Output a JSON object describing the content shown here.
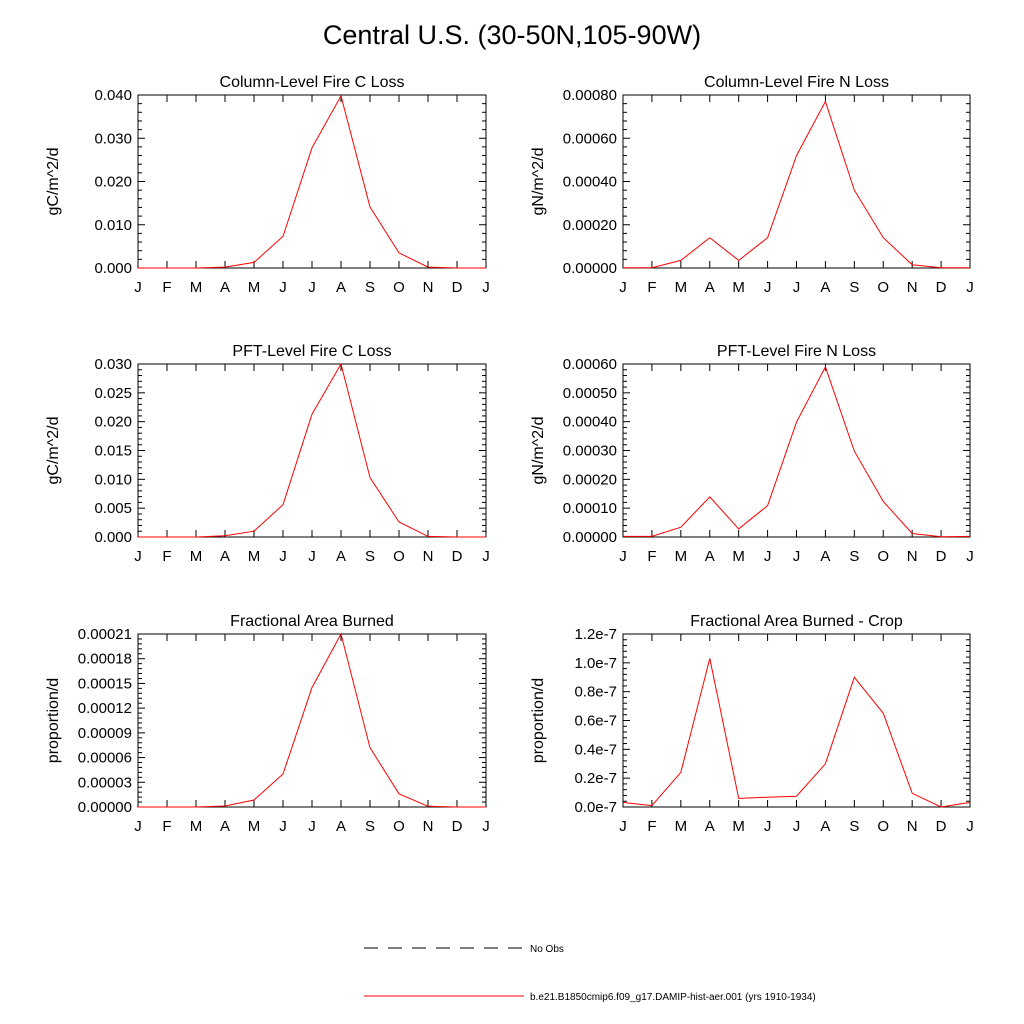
{
  "figure": {
    "title": "Central U.S. (30-50N,105-90W)"
  },
  "colors": {
    "model_line": "#ff0000",
    "obs_line": "#000000",
    "axis": "#000000"
  },
  "legend": {
    "placement": "bottom-center",
    "entries": [
      {
        "label": "No Obs",
        "style": "dashed",
        "color": "#000000"
      },
      {
        "label": "b.e21.B1850cmip6.f09_g17.DAMIP-hist-aer.001 (yrs 1910-1934)",
        "style": "solid",
        "color": "#ff0000"
      }
    ]
  },
  "chart_data": [
    {
      "type": "line",
      "title": "Column-Level Fire C Loss",
      "xlabel": "",
      "ylabel": "gC/m^2/d",
      "categories": [
        "J",
        "F",
        "M",
        "A",
        "M",
        "J",
        "J",
        "A",
        "S",
        "O",
        "N",
        "D",
        "J"
      ],
      "ylim": [
        0,
        0.04
      ],
      "yticks": [
        "0.000",
        "0.010",
        "0.020",
        "0.030",
        "0.040"
      ],
      "series": [
        {
          "values": [
            0.0,
            0.0,
            0.0,
            0.0002,
            0.0013,
            0.0073,
            0.0278,
            0.0398,
            0.0141,
            0.0035,
            0.0002,
            0.0,
            0.0
          ]
        }
      ]
    },
    {
      "type": "line",
      "title": "Column-Level Fire N Loss",
      "xlabel": "",
      "ylabel": "gN/m^2/d",
      "categories": [
        "J",
        "F",
        "M",
        "A",
        "M",
        "J",
        "J",
        "A",
        "S",
        "O",
        "N",
        "D",
        "J"
      ],
      "ylim": [
        0,
        0.0008
      ],
      "yticks": [
        "0.00000",
        "0.00020",
        "0.00040",
        "0.00060",
        "0.00080"
      ],
      "series": [
        {
          "values": [
            1.5e-06,
            1.5e-06,
            3.5e-05,
            0.00014,
            3.5e-05,
            0.00014,
            0.00052,
            0.00077,
            0.00036,
            0.00014,
            1.5e-05,
            1.5e-06,
            1.5e-06
          ]
        }
      ]
    },
    {
      "type": "line",
      "title": "PFT-Level Fire C Loss",
      "xlabel": "",
      "ylabel": "gC/m^2/d",
      "categories": [
        "J",
        "F",
        "M",
        "A",
        "M",
        "J",
        "J",
        "A",
        "S",
        "O",
        "N",
        "D",
        "J"
      ],
      "ylim": [
        0,
        0.03
      ],
      "yticks": [
        "0.000",
        "0.005",
        "0.010",
        "0.015",
        "0.020",
        "0.025",
        "0.030"
      ],
      "series": [
        {
          "values": [
            0.0,
            0.0,
            0.0,
            0.0002,
            0.001,
            0.0056,
            0.0213,
            0.03,
            0.0103,
            0.0026,
            0.0001,
            0.0,
            0.0
          ]
        }
      ]
    },
    {
      "type": "line",
      "title": "PFT-Level Fire N Loss",
      "xlabel": "",
      "ylabel": "gN/m^2/d",
      "categories": [
        "J",
        "F",
        "M",
        "A",
        "M",
        "J",
        "J",
        "A",
        "S",
        "O",
        "N",
        "D",
        "J"
      ],
      "ylim": [
        0,
        0.0006
      ],
      "yticks": [
        "0.00000",
        "0.00010",
        "0.00020",
        "0.00030",
        "0.00040",
        "0.00050",
        "0.00060"
      ],
      "series": [
        {
          "values": [
            2e-06,
            2e-06,
            3.4e-05,
            0.000139,
            2.8e-05,
            0.000109,
            0.000398,
            0.00059,
            0.000298,
            0.000123,
            1.2e-05,
            1e-06,
            2e-06
          ]
        }
      ]
    },
    {
      "type": "line",
      "title": "Fractional Area Burned",
      "xlabel": "",
      "ylabel": "proportion/d",
      "categories": [
        "J",
        "F",
        "M",
        "A",
        "M",
        "J",
        "J",
        "A",
        "S",
        "O",
        "N",
        "D",
        "J"
      ],
      "ylim": [
        0,
        0.00021
      ],
      "yticks": [
        "0.00000",
        "0.00003",
        "0.00006",
        "0.00009",
        "0.00012",
        "0.00015",
        "0.00018",
        "0.00021"
      ],
      "series": [
        {
          "values": [
            0.0,
            0.0,
            0.0,
            1.2e-06,
            8.5e-06,
            4e-05,
            0.000145,
            0.00021,
            7.2e-05,
            1.6e-05,
            8e-07,
            0.0,
            0.0
          ]
        }
      ]
    },
    {
      "type": "line",
      "title": "Fractional Area Burned - Crop",
      "xlabel": "",
      "ylabel": "proportion/d",
      "categories": [
        "J",
        "F",
        "M",
        "A",
        "M",
        "J",
        "J",
        "A",
        "S",
        "O",
        "N",
        "D",
        "J"
      ],
      "ylim": [
        0,
        1.2e-07
      ],
      "yticks": [
        "0.0e-7",
        "0.2e-7",
        "0.4e-7",
        "0.6e-7",
        "0.8e-7",
        "1.0e-7",
        "1.2e-7"
      ],
      "series": [
        {
          "values": [
            3.2e-09,
            1e-09,
            2.4e-08,
            1.03e-07,
            6e-09,
            6.8e-09,
            7.5e-09,
            3e-08,
            9e-08,
            6.5e-08,
            9.5e-09,
            0.0,
            3.2e-09
          ]
        }
      ]
    }
  ]
}
